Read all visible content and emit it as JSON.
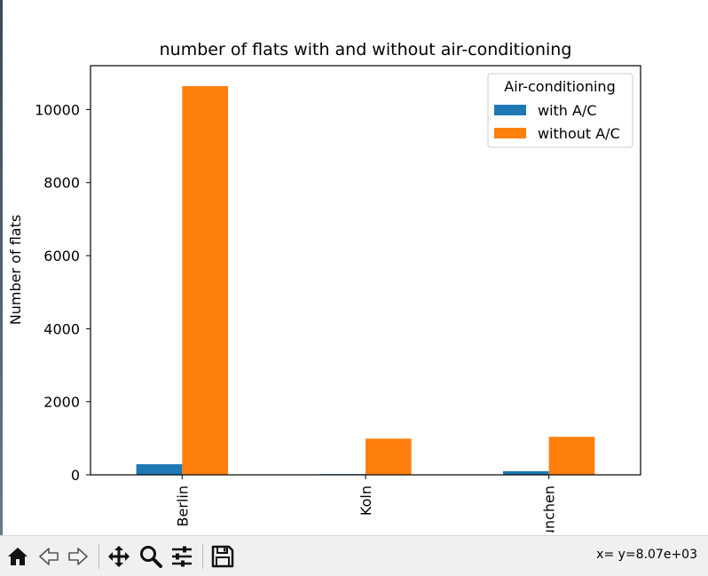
{
  "chart_data": {
    "type": "bar",
    "title": "number of flats with and without air-conditioning",
    "xlabel": "",
    "ylabel": "Number of flats",
    "categories": [
      "Berlin",
      "Koln",
      "Munchen"
    ],
    "series": [
      {
        "name": "with A/C",
        "color": "#1f77b4",
        "values": [
          290,
          20,
          100
        ]
      },
      {
        "name": "without A/C",
        "color": "#ff7f0e",
        "values": [
          10640,
          990,
          1040
        ]
      }
    ],
    "ylim": [
      0,
      11200
    ],
    "yticks": [
      0,
      2000,
      4000,
      6000,
      8000,
      10000
    ],
    "legend_title": "Air-conditioning",
    "legend_position": "top-right",
    "grid": false
  },
  "toolbar": {
    "buttons": [
      {
        "name": "home-icon"
      },
      {
        "name": "back-arrow-icon"
      },
      {
        "name": "forward-arrow-icon"
      },
      {
        "name": "pan-icon"
      },
      {
        "name": "zoom-icon"
      },
      {
        "name": "configure-subplots-icon"
      },
      {
        "name": "save-icon"
      }
    ],
    "coords_x": "x=",
    "coords_y": "y=8.07e+03"
  }
}
